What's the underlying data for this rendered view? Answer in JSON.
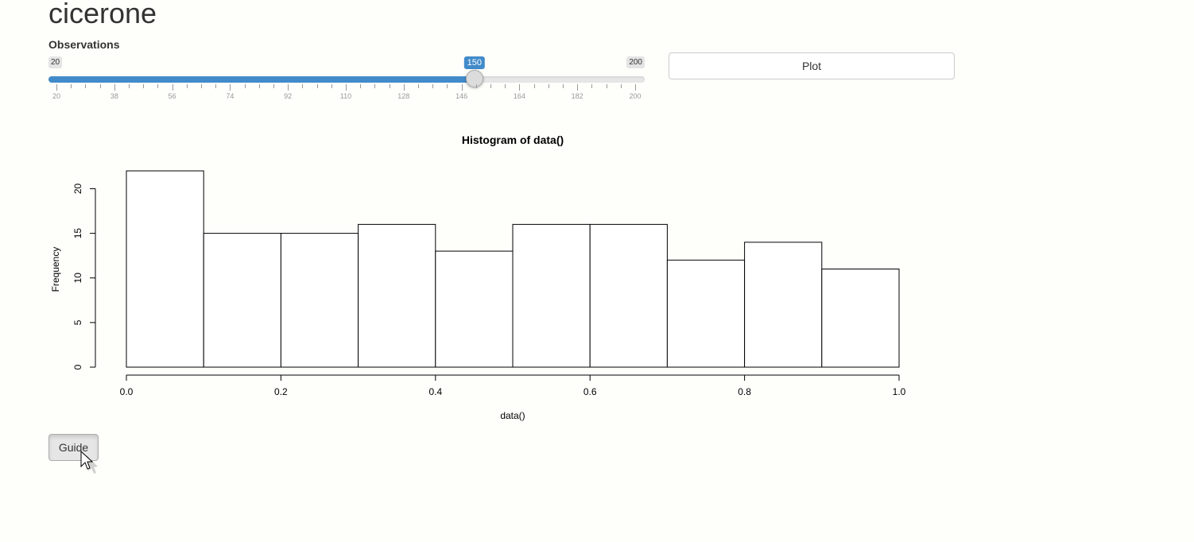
{
  "app": {
    "title": "cicerone"
  },
  "slider": {
    "label": "Observations",
    "min": 20,
    "max": 200,
    "value": 150,
    "min_label": "20",
    "max_label": "200",
    "value_label": "150",
    "tick_labels": [
      "20",
      "38",
      "56",
      "74",
      "92",
      "110",
      "128",
      "146",
      "164",
      "182",
      "200"
    ],
    "accent_color": "#428bca"
  },
  "plot_button": {
    "label": "Plot"
  },
  "guide_button": {
    "label": "Guide"
  },
  "cursor": {
    "icon": "arrow-cursor-icon"
  },
  "chart_data": {
    "type": "bar",
    "title": "Histogram of data()",
    "xlabel": "data()",
    "ylabel": "Frequency",
    "bins": [
      [
        0.0,
        0.1
      ],
      [
        0.1,
        0.2
      ],
      [
        0.2,
        0.3
      ],
      [
        0.3,
        0.4
      ],
      [
        0.4,
        0.5
      ],
      [
        0.5,
        0.6
      ],
      [
        0.6,
        0.7
      ],
      [
        0.7,
        0.8
      ],
      [
        0.8,
        0.9
      ],
      [
        0.9,
        1.0
      ]
    ],
    "values": [
      22,
      15,
      15,
      16,
      13,
      16,
      16,
      12,
      14,
      11
    ],
    "xlim": [
      0,
      1
    ],
    "ylim": [
      0,
      22
    ],
    "x_ticks": [
      "0.0",
      "0.2",
      "0.4",
      "0.6",
      "0.8",
      "1.0"
    ],
    "y_ticks": [
      "0",
      "5",
      "10",
      "15",
      "20"
    ],
    "grid": false,
    "bar_fill": "#ffffff",
    "bar_stroke": "#000000"
  }
}
